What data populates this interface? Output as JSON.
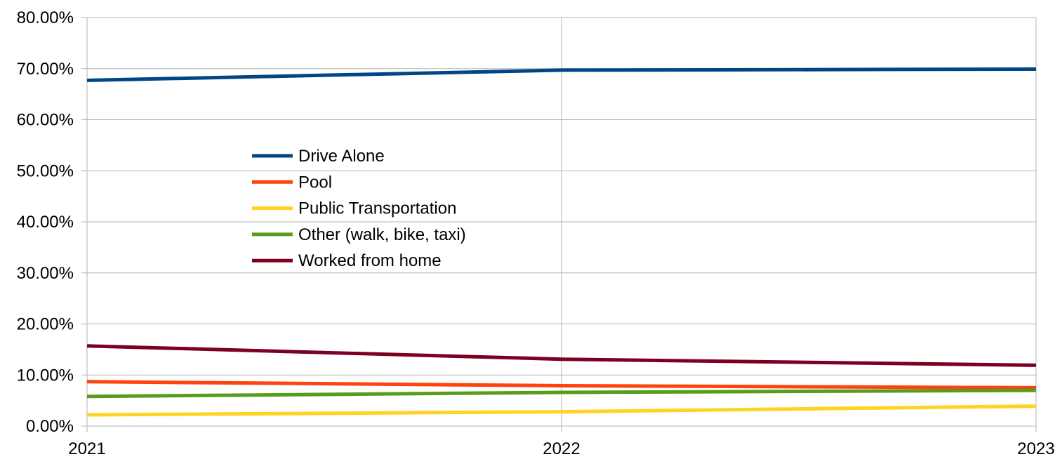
{
  "chart_data": {
    "type": "line",
    "title": "",
    "xlabel": "",
    "ylabel": "",
    "x": [
      "2021",
      "2022",
      "2023"
    ],
    "ylim": [
      0,
      0.8
    ],
    "yticks": [
      "0.00%",
      "10.00%",
      "20.00%",
      "30.00%",
      "40.00%",
      "50.00%",
      "60.00%",
      "70.00%",
      "80.00%"
    ],
    "grid": true,
    "legend_position": "inside, upper-left of center",
    "series": [
      {
        "name": "Drive Alone",
        "color": "#004586",
        "values": [
          0.677,
          0.697,
          0.699
        ]
      },
      {
        "name": "Pool",
        "color": "#ff420e",
        "values": [
          0.087,
          0.079,
          0.075
        ]
      },
      {
        "name": "Public Transportation",
        "color": "#ffd320",
        "values": [
          0.022,
          0.028,
          0.039
        ]
      },
      {
        "name": "Other (walk, bike, taxi)",
        "color": "#579d1c",
        "values": [
          0.058,
          0.066,
          0.07
        ]
      },
      {
        "name": "Worked from home",
        "color": "#7e0021",
        "values": [
          0.157,
          0.131,
          0.119
        ]
      }
    ]
  }
}
